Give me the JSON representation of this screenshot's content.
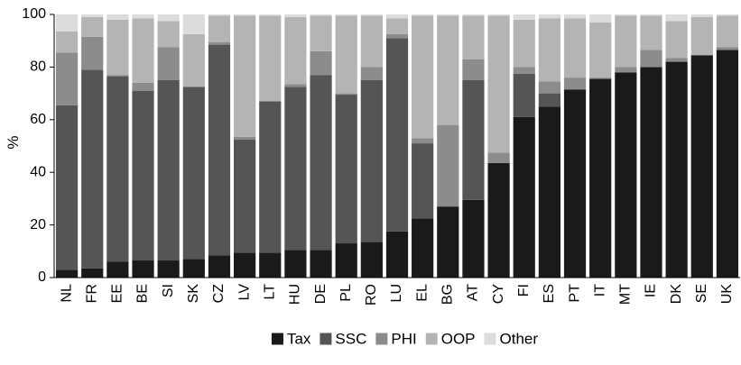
{
  "chart_data": {
    "type": "bar",
    "stacked": true,
    "title": "",
    "xlabel": "",
    "ylabel": "%",
    "ylim": [
      0,
      100
    ],
    "yticks": [
      0,
      20,
      40,
      60,
      80,
      100
    ],
    "grid": false,
    "legend_position": "bottom",
    "categories": [
      "NL",
      "FR",
      "EE",
      "BE",
      "SI",
      "SK",
      "CZ",
      "LV",
      "LT",
      "HU",
      "DE",
      "PL",
      "RO",
      "LU",
      "EL",
      "BG",
      "AT",
      "CY",
      "FI",
      "ES",
      "PT",
      "IT",
      "MT",
      "IE",
      "DK",
      "SE",
      "UK"
    ],
    "series": [
      {
        "name": "Tax",
        "color": "#1a1a1a",
        "values": [
          3,
          3.5,
          6,
          6.5,
          6.5,
          7,
          8.5,
          9.5,
          9.5,
          10.5,
          10.5,
          13,
          13.5,
          17.5,
          22.5,
          27,
          29.5,
          43.5,
          61,
          65,
          71.5,
          75.5,
          78,
          80,
          82,
          84.5,
          86.5
        ]
      },
      {
        "name": "SSC",
        "color": "#555555",
        "values": [
          62.5,
          75.5,
          70.5,
          64.5,
          68.5,
          65.5,
          80,
          43,
          57.5,
          62,
          66.5,
          56.5,
          61.5,
          73.5,
          28.5,
          0,
          45.5,
          0,
          16.5,
          5,
          0,
          0,
          0,
          0,
          0,
          0,
          0
        ]
      },
      {
        "name": "PHI",
        "color": "#8c8c8c",
        "values": [
          20,
          12.5,
          0.5,
          3,
          12.5,
          0,
          1,
          1,
          0,
          1,
          9,
          0.5,
          5,
          1.5,
          2,
          31,
          8,
          4,
          2.5,
          4.5,
          4.5,
          0.5,
          2,
          6.5,
          1.5,
          0,
          1
        ]
      },
      {
        "name": "OOP",
        "color": "#b4b4b4",
        "values": [
          8,
          7.5,
          21,
          24.5,
          10,
          20,
          10,
          46,
          32.5,
          25.5,
          13.5,
          29.5,
          19.5,
          6,
          46.5,
          41.5,
          16.5,
          52,
          18,
          24,
          22.5,
          21,
          19.5,
          13,
          14,
          14.5,
          12
        ]
      },
      {
        "name": "Other",
        "color": "#dcdcdc",
        "values": [
          6.5,
          1,
          2,
          1.5,
          2.5,
          7.5,
          0.5,
          0.5,
          0.5,
          1,
          0.5,
          0.5,
          0.5,
          1.5,
          0.5,
          0.5,
          0.5,
          0.5,
          2,
          1.5,
          1.5,
          3,
          0.5,
          0.5,
          2.5,
          1,
          0.5
        ]
      }
    ]
  }
}
